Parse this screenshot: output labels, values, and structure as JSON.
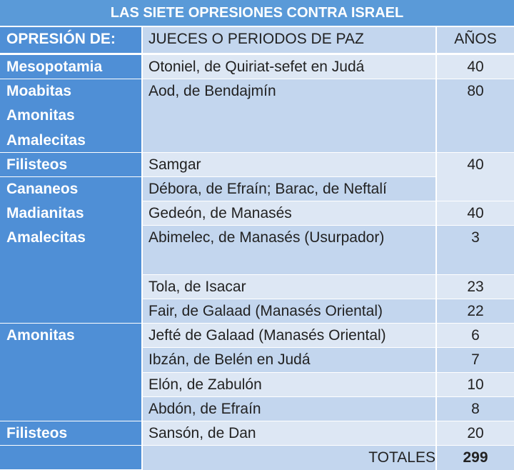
{
  "title": "LAS SIETE OPRESIONES CONTRA ISRAEL",
  "header": [
    "OPRESIÓN DE:",
    "JUECES O PERIODOS DE PAZ",
    "AÑOS"
  ],
  "oppressors": [
    "Mesopotamia",
    "Moabitas",
    "Amonitas",
    "Amalecitas",
    "Filisteos",
    "Cananeos",
    "Madianitas",
    "Amalecitas",
    "Amonitas",
    "Filisteos"
  ],
  "judges": [
    {
      "name": "Otoniel, de Quiriat-sefet en Judá",
      "years": 40
    },
    {
      "name": "Aod, de Bendajmín",
      "years": 80
    },
    {
      "name": "Samgar",
      "years": 40
    },
    {
      "name": "Débora, de Efraín; Barac, de Neftalí"
    },
    {
      "name": "Gedeón, de Manasés",
      "years": 40
    },
    {
      "name": "Abimelec, de Manasés (Usurpador)",
      "years": 3
    },
    {
      "name": "Tola, de Isacar",
      "years": 23
    },
    {
      "name": "Fair, de Galaad (Manasés Oriental)",
      "years": 22
    },
    {
      "name": "Jefté de Galaad (Manasés Oriental)",
      "years": 6
    },
    {
      "name": "Ibzán, de Belén en Judá",
      "years": 7
    },
    {
      "name": "Elón, de Zabulón",
      "years": 10
    },
    {
      "name": "Abdón, de Efraín",
      "years": 8
    },
    {
      "name": "Sansón, de Dan",
      "years": 20
    }
  ],
  "totals": {
    "label": "TOTALES",
    "years": 299
  }
}
